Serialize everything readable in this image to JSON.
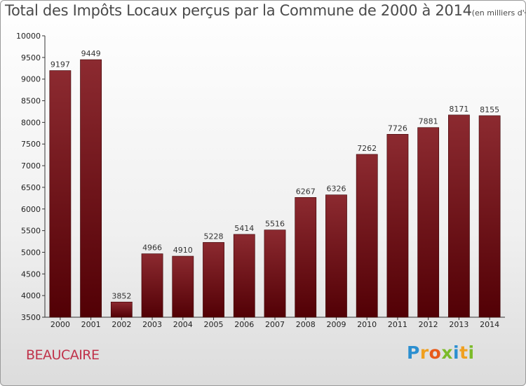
{
  "chart_data": {
    "type": "bar",
    "title": "Total des Impôts Locaux perçus par la Commune de 2000 à 2014",
    "unit_note": "(en milliers d'€)",
    "categories": [
      "2000",
      "2001",
      "2002",
      "2003",
      "2004",
      "2005",
      "2006",
      "2007",
      "2008",
      "2009",
      "2010",
      "2011",
      "2012",
      "2013",
      "2014"
    ],
    "values": [
      9197,
      9449,
      3852,
      4966,
      4910,
      5228,
      5414,
      5516,
      6267,
      6326,
      7262,
      7726,
      7881,
      8171,
      8155
    ],
    "ylim": [
      3500,
      10000
    ],
    "yticks": [
      3500,
      4000,
      4500,
      5000,
      5500,
      6000,
      6500,
      7000,
      7500,
      8000,
      8500,
      9000,
      9500,
      10000
    ],
    "grid": false,
    "bar_color": "#6b0f14"
  },
  "commune": "BEAUCAIRE",
  "logo": {
    "letters": [
      "P",
      "r",
      "o",
      "x",
      "i",
      "t",
      "i"
    ],
    "colors": [
      "#2b8fd0",
      "#f0a020",
      "#e85a1a",
      "#7cbb2a",
      "#2b8fd0",
      "#f0a020",
      "#7cbb2a"
    ]
  }
}
